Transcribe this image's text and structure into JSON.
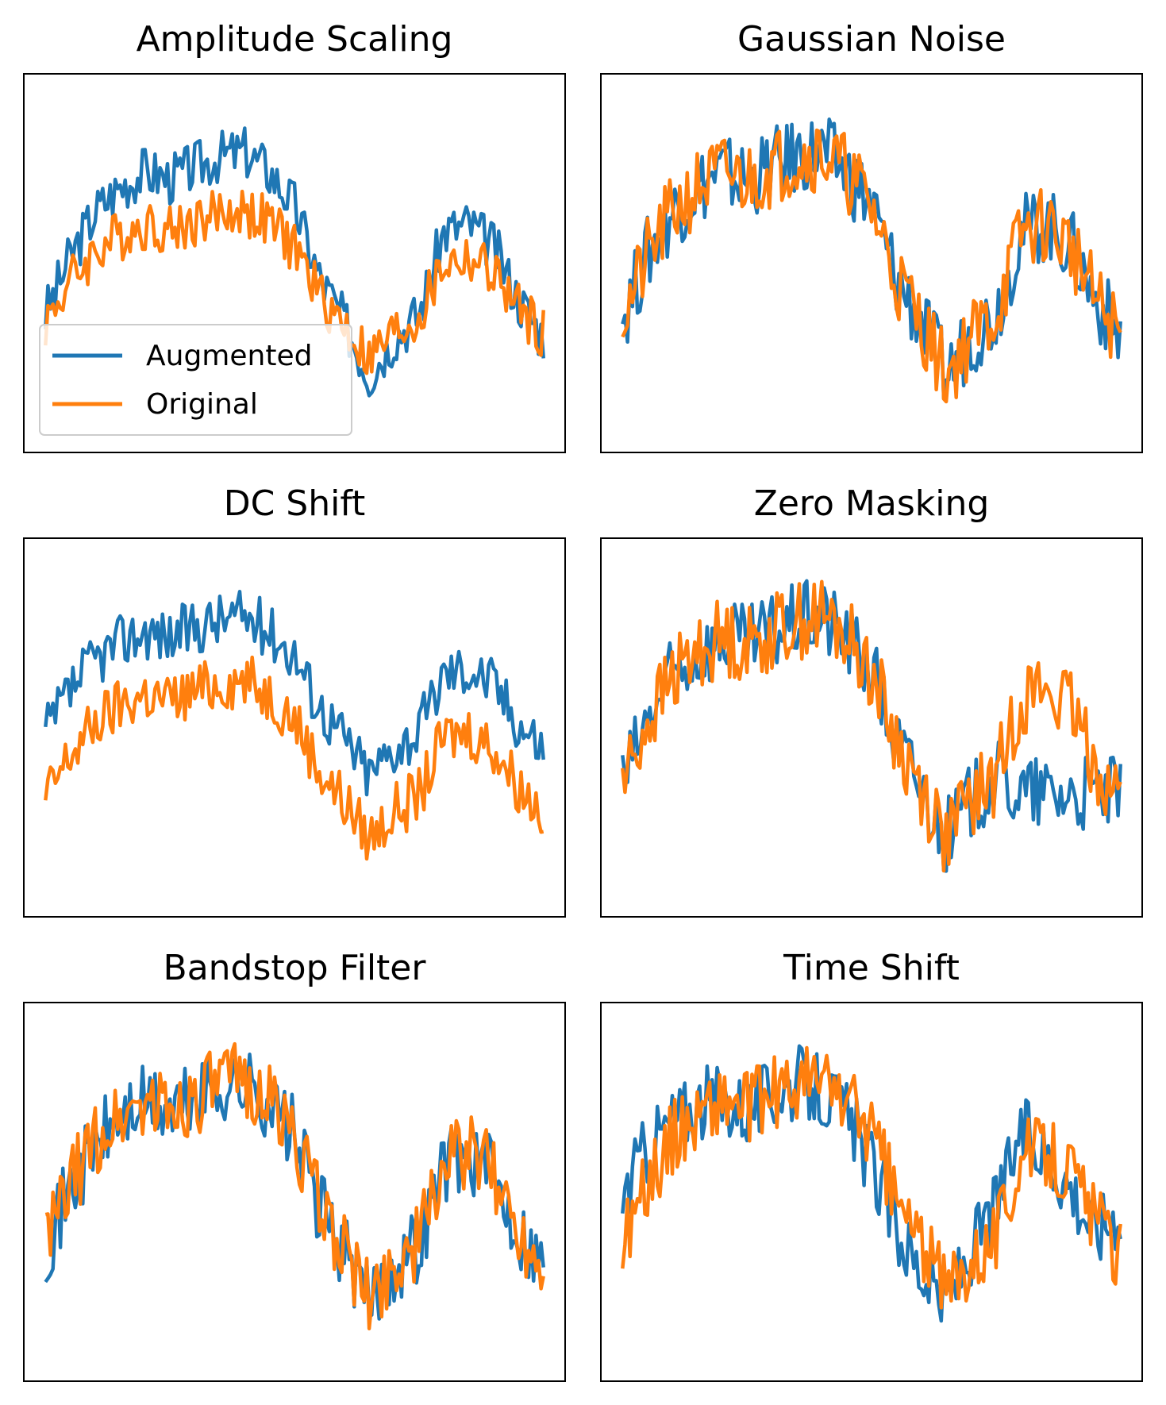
{
  "figure": {
    "colors": {
      "augmented": "#1f77b4",
      "original": "#ff7f0e",
      "frame": "#000000"
    }
  },
  "legend": {
    "augmented_label": "Augmented",
    "original_label": "Original",
    "placement": "lower-left"
  },
  "chart_data": [
    {
      "type": "line",
      "title": "Amplitude Scaling",
      "x": [
        0,
        20,
        40,
        60,
        80,
        100,
        120,
        140,
        160,
        180,
        200,
        220,
        240,
        260,
        280,
        300,
        320,
        340,
        360,
        380,
        400
      ],
      "series": [
        {
          "name": "Augmented",
          "values": [
            0.1,
            0.48,
            0.78,
            0.95,
            1.05,
            1.0,
            1.08,
            1.15,
            1.18,
            1.05,
            0.82,
            0.35,
            0.05,
            -0.3,
            -0.05,
            0.1,
            0.65,
            0.7,
            0.55,
            0.2,
            -0.05
          ]
        },
        {
          "name": "Original",
          "values": [
            0.05,
            0.32,
            0.52,
            0.63,
            0.7,
            0.66,
            0.72,
            0.77,
            0.79,
            0.7,
            0.55,
            0.23,
            0.03,
            -0.2,
            -0.03,
            0.07,
            0.43,
            0.47,
            0.37,
            0.13,
            -0.03
          ]
        }
      ],
      "legend": true,
      "xticks": false,
      "yticks": false
    },
    {
      "type": "line",
      "title": "Gaussian Noise",
      "x": [
        0,
        20,
        40,
        60,
        80,
        100,
        120,
        140,
        160,
        180,
        200,
        220,
        240,
        260,
        280,
        300,
        320,
        340,
        360,
        380,
        400
      ],
      "series": [
        {
          "name": "Augmented",
          "values": [
            0.05,
            0.33,
            0.52,
            0.63,
            0.7,
            0.66,
            0.72,
            0.77,
            0.79,
            0.7,
            0.55,
            0.23,
            0.03,
            -0.2,
            -0.03,
            0.07,
            0.43,
            0.47,
            0.37,
            0.13,
            -0.03
          ]
        },
        {
          "name": "Original",
          "values": [
            0.05,
            0.32,
            0.52,
            0.63,
            0.7,
            0.66,
            0.72,
            0.77,
            0.79,
            0.7,
            0.55,
            0.23,
            0.03,
            -0.2,
            -0.03,
            0.07,
            0.43,
            0.47,
            0.37,
            0.13,
            -0.03
          ]
        }
      ],
      "xticks": false,
      "yticks": false
    },
    {
      "type": "line",
      "title": "DC Shift",
      "x": [
        0,
        20,
        40,
        60,
        80,
        100,
        120,
        140,
        160,
        180,
        200,
        220,
        240,
        260,
        280,
        300,
        320,
        340,
        360,
        380,
        400
      ],
      "series": [
        {
          "name": "Augmented",
          "values": [
            0.45,
            0.72,
            0.92,
            1.03,
            1.1,
            1.06,
            1.12,
            1.17,
            1.19,
            1.1,
            0.95,
            0.63,
            0.43,
            0.2,
            0.37,
            0.47,
            0.83,
            0.87,
            0.77,
            0.53,
            0.37
          ]
        },
        {
          "name": "Original",
          "values": [
            0.05,
            0.32,
            0.52,
            0.63,
            0.7,
            0.66,
            0.72,
            0.77,
            0.79,
            0.7,
            0.55,
            0.23,
            0.03,
            -0.2,
            -0.03,
            0.07,
            0.43,
            0.47,
            0.37,
            0.13,
            -0.03
          ]
        }
      ],
      "xticks": false,
      "yticks": false
    },
    {
      "type": "line",
      "title": "Zero Masking",
      "x": [
        0,
        20,
        40,
        60,
        80,
        100,
        120,
        140,
        160,
        180,
        200,
        220,
        240,
        260,
        280,
        300,
        320,
        340,
        360,
        380,
        400
      ],
      "series": [
        {
          "name": "Augmented",
          "values": [
            0.05,
            0.32,
            0.52,
            0.63,
            0.7,
            0.66,
            0.72,
            0.77,
            0.79,
            0.7,
            0.55,
            0.23,
            0.03,
            -0.2,
            -0.03,
            0.07,
            0.0,
            0.0,
            0.0,
            0.0,
            0.0
          ]
        },
        {
          "name": "Original",
          "values": [
            0.05,
            0.32,
            0.52,
            0.63,
            0.7,
            0.66,
            0.72,
            0.77,
            0.79,
            0.7,
            0.55,
            0.23,
            0.03,
            -0.2,
            -0.03,
            0.07,
            0.43,
            0.47,
            0.37,
            0.13,
            -0.03
          ]
        }
      ],
      "xticks": false,
      "yticks": false
    },
    {
      "type": "line",
      "title": "Bandstop Filter",
      "x": [
        0,
        20,
        40,
        60,
        80,
        100,
        120,
        140,
        160,
        180,
        200,
        220,
        240,
        260,
        280,
        300,
        320,
        340,
        360,
        380,
        400
      ],
      "series": [
        {
          "name": "Augmented",
          "values": [
            0.04,
            0.3,
            0.5,
            0.62,
            0.69,
            0.65,
            0.71,
            0.76,
            0.77,
            0.69,
            0.54,
            0.22,
            0.02,
            -0.21,
            -0.04,
            0.06,
            0.42,
            0.46,
            0.36,
            0.12,
            -0.04
          ]
        },
        {
          "name": "Original",
          "values": [
            0.05,
            0.32,
            0.52,
            0.63,
            0.7,
            0.66,
            0.72,
            0.77,
            0.79,
            0.7,
            0.55,
            0.23,
            0.03,
            -0.2,
            -0.03,
            0.07,
            0.43,
            0.47,
            0.37,
            0.13,
            -0.03
          ]
        }
      ],
      "xticks": false,
      "yticks": false
    },
    {
      "type": "line",
      "title": "Time Shift",
      "x": [
        0,
        20,
        40,
        60,
        80,
        100,
        120,
        140,
        160,
        180,
        200,
        220,
        240,
        260,
        280,
        300,
        320,
        340,
        360,
        380,
        400
      ],
      "series": [
        {
          "name": "Augmented",
          "values": [
            0.25,
            0.48,
            0.6,
            0.68,
            0.7,
            0.66,
            0.72,
            0.78,
            0.74,
            0.62,
            0.4,
            0.1,
            -0.1,
            -0.25,
            0.0,
            0.2,
            0.55,
            0.45,
            0.3,
            0.08,
            0.2
          ]
        },
        {
          "name": "Original",
          "values": [
            0.05,
            0.32,
            0.52,
            0.63,
            0.7,
            0.66,
            0.72,
            0.77,
            0.79,
            0.7,
            0.55,
            0.23,
            0.03,
            -0.2,
            -0.03,
            0.07,
            0.43,
            0.47,
            0.37,
            0.13,
            -0.03
          ]
        }
      ],
      "xticks": false,
      "yticks": false
    }
  ]
}
